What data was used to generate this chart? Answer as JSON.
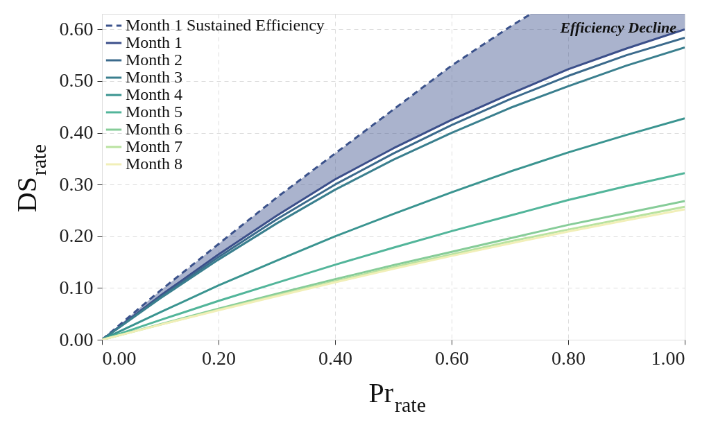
{
  "chart_data": {
    "type": "line",
    "xlabel": "Pr$_{rate}$",
    "ylabel": "DS$_{rate}$",
    "xlim": [
      0,
      1
    ],
    "ylim": [
      0,
      0.63
    ],
    "xticks": [
      {
        "value": 0,
        "label": "0.00"
      },
      {
        "value": 0.2,
        "label": "0.20"
      },
      {
        "value": 0.4,
        "label": "0.40"
      },
      {
        "value": 0.6,
        "label": "0.60"
      },
      {
        "value": 0.8,
        "label": "0.80"
      },
      {
        "value": 1,
        "label": "1.00"
      }
    ],
    "yticks": [
      {
        "value": 0,
        "label": "0.00"
      },
      {
        "value": 0.1,
        "label": "0.10"
      },
      {
        "value": 0.2,
        "label": "0.20"
      },
      {
        "value": 0.3,
        "label": "0.30"
      },
      {
        "value": 0.4,
        "label": "0.40"
      },
      {
        "value": 0.5,
        "label": "0.50"
      },
      {
        "value": 0.6,
        "label": "0.60"
      }
    ],
    "grid": true,
    "legend": "top left",
    "annotations": [
      "Efficiency Decline"
    ],
    "series": [
      {
        "name": "Month 1 Sustained Efficiency",
        "color": "#3b528b",
        "line_style": "dashed",
        "x": [
          0,
          0.1,
          0.2,
          0.3,
          0.4,
          0.5,
          0.6,
          0.7,
          0.736
        ],
        "values": [
          0,
          0.095,
          0.185,
          0.275,
          0.36,
          0.445,
          0.53,
          0.605,
          0.63
        ]
      },
      {
        "name": "Month 1",
        "color": "#3b4f8a",
        "line_style": "solid",
        "x": [
          0,
          0.1,
          0.2,
          0.3,
          0.4,
          0.5,
          0.6,
          0.7,
          0.736,
          0.8,
          0.9,
          1.0
        ],
        "values": [
          0,
          0.085,
          0.165,
          0.24,
          0.31,
          0.37,
          0.425,
          0.475,
          0.492,
          0.523,
          0.563,
          0.6
        ],
        "lower": [
          0,
          0.085,
          0.165,
          0.24,
          0.31,
          0.37,
          0.425,
          0.475,
          0.492,
          0.523,
          0.563,
          0.6
        ],
        "upper": [
          0,
          0.095,
          0.185,
          0.275,
          0.36,
          0.445,
          0.53,
          0.605,
          0.63,
          0.63,
          0.63,
          0.63
        ]
      },
      {
        "name": "Month 2",
        "color": "#3b6a8c",
        "line_style": "solid",
        "x": [
          0,
          0.1,
          0.2,
          0.3,
          0.4,
          0.5,
          0.6,
          0.7,
          0.8,
          0.9,
          1.0
        ],
        "values": [
          0,
          0.082,
          0.16,
          0.233,
          0.3,
          0.36,
          0.415,
          0.465,
          0.51,
          0.55,
          0.584
        ]
      },
      {
        "name": "Month 3",
        "color": "#3a7f8e",
        "line_style": "solid",
        "x": [
          0,
          0.1,
          0.2,
          0.3,
          0.4,
          0.5,
          0.6,
          0.7,
          0.8,
          0.9,
          1.0
        ],
        "values": [
          0,
          0.08,
          0.155,
          0.225,
          0.29,
          0.348,
          0.4,
          0.448,
          0.49,
          0.53,
          0.565
        ]
      },
      {
        "name": "Month 4",
        "color": "#3a9490",
        "line_style": "solid",
        "x": [
          0,
          0.1,
          0.2,
          0.3,
          0.4,
          0.5,
          0.6,
          0.7,
          0.8,
          0.9,
          1.0
        ],
        "values": [
          0,
          0.053,
          0.105,
          0.153,
          0.2,
          0.243,
          0.285,
          0.325,
          0.362,
          0.396,
          0.428
        ]
      },
      {
        "name": "Month 5",
        "color": "#52b59a",
        "line_style": "solid",
        "x": [
          0,
          0.1,
          0.2,
          0.3,
          0.4,
          0.5,
          0.6,
          0.7,
          0.8,
          0.9,
          1.0
        ],
        "values": [
          0,
          0.038,
          0.075,
          0.11,
          0.145,
          0.178,
          0.21,
          0.24,
          0.27,
          0.297,
          0.322
        ]
      },
      {
        "name": "Month 6",
        "color": "#86cc98",
        "line_style": "solid",
        "x": [
          0,
          0.1,
          0.2,
          0.3,
          0.4,
          0.5,
          0.6,
          0.7,
          0.8,
          0.9,
          1.0
        ],
        "values": [
          0,
          0.03,
          0.06,
          0.089,
          0.117,
          0.144,
          0.17,
          0.196,
          0.222,
          0.245,
          0.268
        ]
      },
      {
        "name": "Month 7",
        "color": "#b9e2a0",
        "line_style": "solid",
        "x": [
          0,
          0.1,
          0.2,
          0.3,
          0.4,
          0.5,
          0.6,
          0.7,
          0.8,
          0.9,
          1.0
        ],
        "values": [
          0,
          0.029,
          0.058,
          0.086,
          0.113,
          0.14,
          0.165,
          0.19,
          0.213,
          0.235,
          0.257
        ]
      },
      {
        "name": "Month 8",
        "color": "#f1efb8",
        "line_style": "solid",
        "x": [
          0,
          0.1,
          0.2,
          0.3,
          0.4,
          0.5,
          0.6,
          0.7,
          0.8,
          0.9,
          1.0
        ],
        "values": [
          0,
          0.029,
          0.057,
          0.084,
          0.111,
          0.137,
          0.162,
          0.186,
          0.209,
          0.231,
          0.252
        ]
      }
    ]
  }
}
